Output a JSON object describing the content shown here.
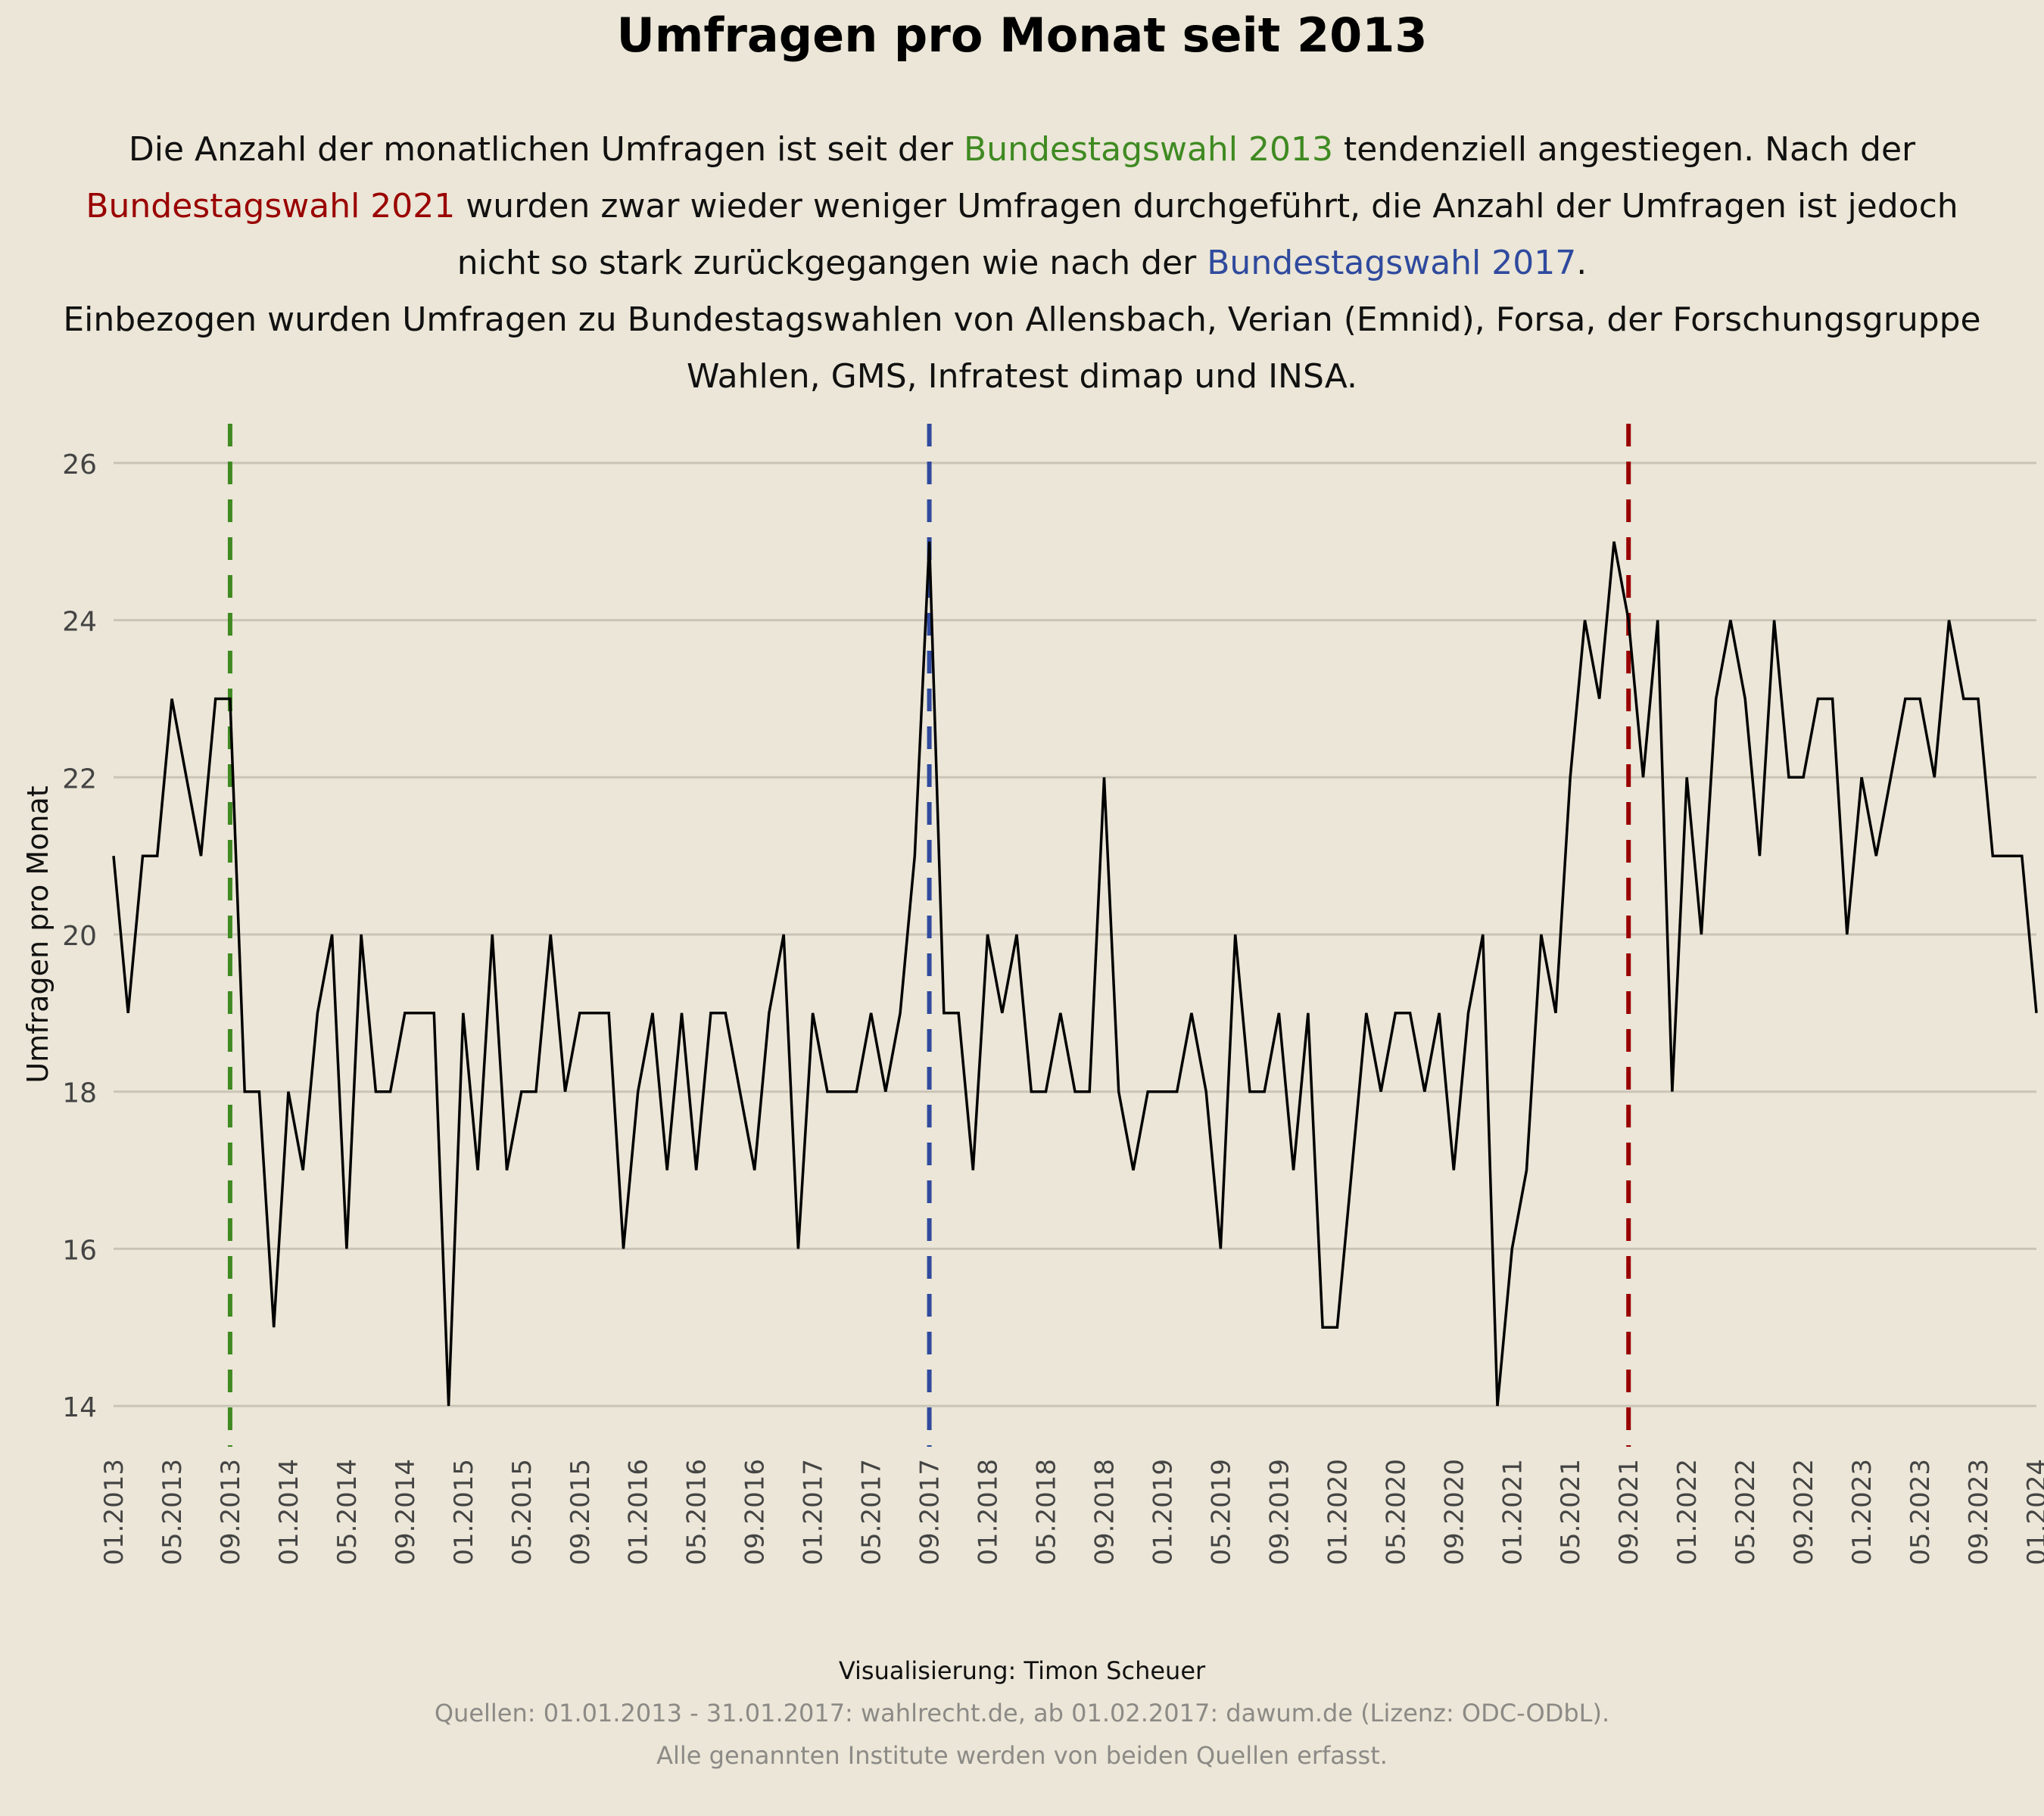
{
  "chart_data": {
    "type": "line",
    "title": "Umfragen pro Monat seit 2013",
    "subtitle": [
      [
        {
          "t": "Die Anzahl der monatlichen Umfragen ist seit der ",
          "c": ""
        },
        {
          "t": "Bundestagswahl 2013",
          "c": "green"
        },
        {
          "t": " tendenziell angestiegen. Nach der",
          "c": ""
        }
      ],
      [
        {
          "t": "Bundestagswahl 2021",
          "c": "red"
        },
        {
          "t": " wurden zwar wieder weniger Umfragen durchgeführt, die Anzahl der Umfragen ist jedoch",
          "c": ""
        }
      ],
      [
        {
          "t": "nicht so stark zurückgegangen wie nach der ",
          "c": ""
        },
        {
          "t": "Bundestagswahl 2017",
          "c": "blue"
        },
        {
          "t": ".",
          "c": ""
        }
      ],
      [
        {
          "t": "Einbezogen wurden Umfragen zu Bundestagswahlen von Allensbach, Verian (Emnid), Forsa, der Forschungsgruppe",
          "c": ""
        }
      ],
      [
        {
          "t": "Wahlen, GMS, Infratest dimap und INSA.",
          "c": ""
        }
      ]
    ],
    "ylabel": "Umfragen pro Monat",
    "xlabel": "",
    "ylim": [
      13.5,
      26.5
    ],
    "yticks": [
      14,
      16,
      18,
      20,
      22,
      24,
      26
    ],
    "x_start": "01.2013",
    "x_end": "01.2024",
    "xticks": [
      "01.2013",
      "05.2013",
      "09.2013",
      "01.2014",
      "05.2014",
      "09.2014",
      "01.2015",
      "05.2015",
      "09.2015",
      "01.2016",
      "05.2016",
      "09.2016",
      "01.2017",
      "05.2017",
      "09.2017",
      "01.2018",
      "05.2018",
      "09.2018",
      "01.2019",
      "05.2019",
      "09.2019",
      "01.2020",
      "05.2020",
      "09.2020",
      "01.2021",
      "05.2021",
      "09.2021",
      "01.2022",
      "05.2022",
      "09.2022",
      "01.2023",
      "05.2023",
      "09.2023",
      "01.2024"
    ],
    "grid": "horizontal",
    "series": [
      {
        "color": "#000000",
        "values": [
          21,
          19,
          21,
          21,
          23,
          22,
          21,
          23,
          23,
          18,
          18,
          15,
          18,
          17,
          19,
          20,
          16,
          20,
          18,
          18,
          19,
          19,
          19,
          14,
          19,
          17,
          20,
          17,
          18,
          18,
          20,
          18,
          19,
          19,
          19,
          16,
          18,
          19,
          17,
          19,
          17,
          19,
          19,
          18,
          17,
          19,
          20,
          16,
          19,
          18,
          18,
          18,
          19,
          18,
          19,
          21,
          25,
          19,
          19,
          17,
          20,
          19,
          20,
          18,
          18,
          19,
          18,
          18,
          22,
          18,
          17,
          18,
          18,
          18,
          19,
          18,
          16,
          20,
          18,
          18,
          19,
          17,
          19,
          15,
          15,
          17,
          19,
          18,
          19,
          19,
          18,
          19,
          17,
          19,
          20,
          14,
          16,
          17,
          20,
          19,
          22,
          24,
          23,
          25,
          24,
          22,
          24,
          18,
          22,
          20,
          23,
          24,
          23,
          21,
          24,
          22,
          22,
          23,
          23,
          20,
          22,
          21,
          22,
          23,
          23,
          22,
          24,
          23,
          23,
          21,
          21,
          21,
          19
        ]
      }
    ],
    "vlines": [
      {
        "x": "09.2013",
        "color": "#3f8a22"
      },
      {
        "x": "09.2017",
        "color": "#2f4a9e"
      },
      {
        "x": "09.2021",
        "color": "#9a0000"
      }
    ]
  },
  "caption": {
    "credit": "Visualisierung: Timon Scheuer",
    "sources": "Quellen: 01.01.2013 - 31.01.2017: wahlrecht.de, ab 01.02.2017: dawum.de (Lizenz: ODC-ODbL).",
    "note": "Alle genannten Institute werden von beiden Quellen erfasst."
  }
}
